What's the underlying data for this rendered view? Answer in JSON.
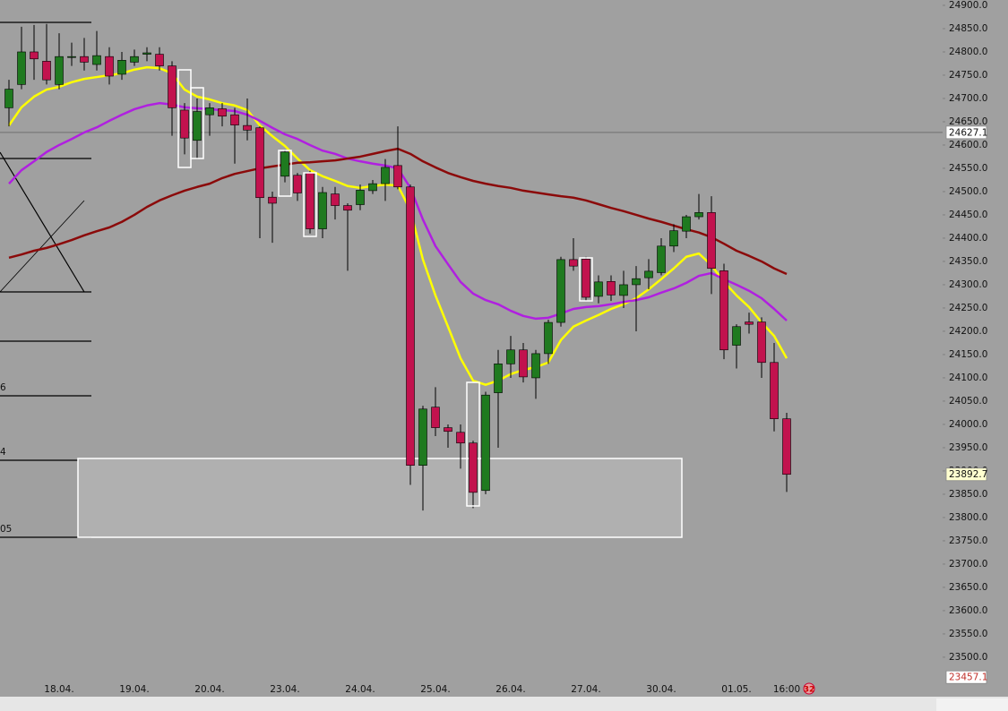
{
  "chart_data": {
    "type": "candlestick",
    "categories": [
      null,
      null,
      null,
      null,
      "18.04.",
      null,
      null,
      null,
      null,
      null,
      "19.04.",
      null,
      null,
      null,
      null,
      null,
      "20.04.",
      null,
      null,
      null,
      null,
      null,
      "23.04.",
      null,
      null,
      null,
      null,
      null,
      "24.04.",
      null,
      null,
      null,
      null,
      null,
      "25.04.",
      null,
      null,
      null,
      null,
      null,
      "26.04.",
      null,
      null,
      null,
      null,
      null,
      "27.04.",
      null,
      null,
      null,
      null,
      null,
      "30.04.",
      null,
      null,
      null,
      null,
      null,
      "01.05.",
      null,
      null,
      null,
      "16:00"
    ],
    "open": [
      24680,
      24730,
      24800,
      24780,
      24730,
      24788,
      24790,
      24773,
      24790,
      24752,
      24778,
      24795,
      24795,
      24770,
      24675,
      24610,
      24665,
      24678,
      24665,
      24642,
      24637,
      24488,
      24533,
      24535,
      24540,
      24420,
      24495,
      24470,
      24472,
      24502,
      24517,
      24556,
      24510,
      23912,
      24037,
      23993,
      23983,
      23960,
      23858,
      24068,
      24130,
      24160,
      24100,
      24152,
      24219,
      24354,
      24355,
      24275,
      24307,
      24277,
      24300,
      24315,
      24326,
      24383,
      24415,
      24446,
      24455,
      24330,
      24170,
      24220,
      24220,
      24133,
      24012
    ],
    "high": [
      24740,
      24854,
      24858,
      24860,
      24840,
      24820,
      24830,
      24845,
      24810,
      24800,
      24805,
      24810,
      24810,
      24780,
      24690,
      24700,
      24690,
      24690,
      24680,
      24700,
      24640,
      24500,
      24590,
      24540,
      24545,
      24510,
      24510,
      24475,
      24515,
      24525,
      24570,
      24640,
      24515,
      24040,
      24080,
      24000,
      24000,
      23965,
      24070,
      24160,
      24190,
      24175,
      24160,
      24225,
      24360,
      24400,
      24360,
      24320,
      24320,
      24330,
      24340,
      24355,
      24400,
      24430,
      24450,
      24495,
      24490,
      24345,
      24215,
      24240,
      24230,
      24175,
      24025
    ],
    "low": [
      24640,
      24720,
      24740,
      24730,
      24720,
      24770,
      24760,
      24760,
      24730,
      24740,
      24770,
      24780,
      24760,
      24620,
      24580,
      24570,
      24620,
      24640,
      24560,
      24610,
      24400,
      24390,
      24520,
      24480,
      24410,
      24400,
      24440,
      24330,
      24460,
      24495,
      24480,
      24505,
      23870,
      23815,
      23975,
      23950,
      23905,
      23820,
      23850,
      23950,
      24100,
      24090,
      24055,
      24130,
      24210,
      24330,
      24265,
      24260,
      24265,
      24250,
      24200,
      24290,
      24320,
      24370,
      24400,
      24440,
      24280,
      24140,
      24120,
      24195,
      24100,
      23985,
      23855
    ],
    "close": [
      24720,
      24800,
      24785,
      24740,
      24790,
      24790,
      24778,
      24792,
      24748,
      24782,
      24790,
      24798,
      24770,
      24680,
      24615,
      24672,
      24680,
      24662,
      24643,
      24632,
      24487,
      24475,
      24585,
      24497,
      24420,
      24498,
      24470,
      24460,
      24503,
      24517,
      24552,
      24510,
      23912,
      24033,
      23993,
      23985,
      23960,
      23854,
      24063,
      24130,
      24160,
      24102,
      24152,
      24219,
      24354,
      24340,
      24273,
      24306,
      24278,
      24300,
      24313,
      24329,
      24383,
      24416,
      24446,
      24455,
      24335,
      24160,
      24210,
      24215,
      24133,
      24012,
      23892.7
    ],
    "up_color": "#1f7a1f",
    "down_color": "#c2124e",
    "series": [
      {
        "color": "#ffff00",
        "values": [
          24642,
          24681,
          24704,
          24719,
          24725,
          24735,
          24742,
          24746,
          24750,
          24754,
          24762,
          24767,
          24765,
          24754,
          24719,
          24704,
          24698,
          24690,
          24685,
          24675,
          24642,
          24619,
          24598,
          24571,
          24546,
          24533,
          24523,
          24512,
          24508,
          24512,
          24515,
          24513,
          24460,
          24354,
          24277,
          24210,
          24142,
          24094,
          24085,
          24094,
          24108,
          24117,
          24123,
          24133,
          24181,
          24210,
          24223,
          24235,
          24248,
          24258,
          24271,
          24290,
          24312,
          24335,
          24360,
          24367,
          24342,
          24306,
          24277,
          24252,
          24219,
          24190,
          24142
        ]
      },
      {
        "color": "#b020e0",
        "values": [
          24517,
          24546,
          24565,
          24585,
          24600,
          24613,
          24627,
          24638,
          24652,
          24665,
          24677,
          24685,
          24690,
          24687,
          24681,
          24679,
          24677,
          24675,
          24673,
          24665,
          24652,
          24637,
          24623,
          24613,
          24600,
          24588,
          24581,
          24571,
          24565,
          24560,
          24556,
          24550,
          24508,
          24440,
          24383,
          24344,
          24306,
          24281,
          24267,
          24258,
          24244,
          24233,
          24227,
          24229,
          24238,
          24248,
          24252,
          24254,
          24258,
          24263,
          24267,
          24273,
          24283,
          24292,
          24304,
          24319,
          24325,
          24312,
          24300,
          24287,
          24271,
          24248,
          24223
        ]
      },
      {
        "color": "#8b0a0a",
        "values": [
          24358,
          24365,
          24373,
          24379,
          24387,
          24396,
          24406,
          24415,
          24423,
          24435,
          24450,
          24467,
          24481,
          24492,
          24502,
          24510,
          24517,
          24529,
          24538,
          24544,
          24550,
          24554,
          24558,
          24562,
          24563,
          24565,
          24567,
          24571,
          24575,
          24581,
          24587,
          24592,
          24581,
          24565,
          24552,
          24540,
          24531,
          24523,
          24517,
          24512,
          24508,
          24502,
          24498,
          24494,
          24490,
          24487,
          24481,
          24473,
          24465,
          24458,
          24450,
          24442,
          24435,
          24427,
          24419,
          24412,
          24402,
          24388,
          24373,
          24362,
          24350,
          24335,
          24323
        ]
      }
    ],
    "ylim": [
      23446,
      24911.5
    ],
    "yticks": [
      {
        "value": 24900,
        "label": "24900.0"
      },
      {
        "value": 24850,
        "label": "24850.0"
      },
      {
        "value": 24800,
        "label": "24800.0"
      },
      {
        "value": 24750,
        "label": "24750.0"
      },
      {
        "value": 24700,
        "label": "24700.0"
      },
      {
        "value": 24650,
        "label": "24650.0"
      },
      {
        "value": 24600,
        "label": "24600.0"
      },
      {
        "value": 24550,
        "label": "24550.0"
      },
      {
        "value": 24500,
        "label": "24500.0"
      },
      {
        "value": 24450,
        "label": "24450.0"
      },
      {
        "value": 24400,
        "label": "24400.0"
      },
      {
        "value": 24350,
        "label": "24350.0"
      },
      {
        "value": 24300,
        "label": "24300.0"
      },
      {
        "value": 24250,
        "label": "24250.0"
      },
      {
        "value": 24200,
        "label": "24200.0"
      },
      {
        "value": 24150,
        "label": "24150.0"
      },
      {
        "value": 24100,
        "label": "24100.0"
      },
      {
        "value": 24050,
        "label": "24050.0"
      },
      {
        "value": 24000,
        "label": "24000.0"
      },
      {
        "value": 23950,
        "label": "23950.0"
      },
      {
        "value": 23900,
        "label": "23900.0"
      },
      {
        "value": 23850,
        "label": "23850.0"
      },
      {
        "value": 23800,
        "label": "23800.0"
      },
      {
        "value": 23750,
        "label": "23750.0"
      },
      {
        "value": 23700,
        "label": "23700.0"
      },
      {
        "value": 23650,
        "label": "23650.0"
      },
      {
        "value": 23600,
        "label": "23600.0"
      },
      {
        "value": 23550,
        "label": "23550.0"
      },
      {
        "value": 23500,
        "label": "23500.0"
      }
    ],
    "price_line": 24627.1,
    "last_price": 23892.7,
    "marker_price": 23457.1,
    "drawing_labels": [
      "6",
      "4",
      "05"
    ],
    "badge": "32"
  }
}
